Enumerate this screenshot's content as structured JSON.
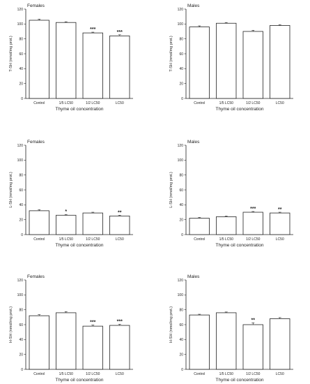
{
  "figure": {
    "background": "#ffffff",
    "bar_fill": "#ffffff",
    "bar_stroke": "#222222"
  },
  "chart_data": [
    {
      "type": "bar",
      "title": "Females",
      "xlabel": "Thyme oil concentration",
      "ylabel": "T-SH (nmol/mg prot.)",
      "ylim": [
        0,
        120
      ],
      "yticks": [
        0,
        20,
        40,
        60,
        80,
        100,
        120
      ],
      "categories": [
        "Control",
        "1/5 LC50",
        "1/2 LC50",
        "LC50"
      ],
      "values": [
        105,
        102,
        88,
        84
      ],
      "errors": [
        1.5,
        1.0,
        1.0,
        1.5
      ],
      "significance": [
        "",
        "",
        "***",
        "***"
      ]
    },
    {
      "type": "bar",
      "title": "Males",
      "xlabel": "Thyme oil concentration",
      "ylabel": "T-SH (nmol/mg prot.)",
      "ylim": [
        0,
        120
      ],
      "yticks": [
        0,
        20,
        40,
        60,
        80,
        100,
        120
      ],
      "categories": [
        "Control",
        "1/5 LC50",
        "1/2 LC50",
        "LC50"
      ],
      "values": [
        96,
        101,
        90,
        98
      ],
      "errors": [
        1.5,
        1.0,
        1.5,
        1.0
      ],
      "significance": [
        "",
        "",
        "",
        ""
      ]
    },
    {
      "type": "bar",
      "title": "Females",
      "xlabel": "Thyme oil concentration",
      "ylabel": "L-SH (nmol/mg prot.)",
      "ylim": [
        0,
        120
      ],
      "yticks": [
        0,
        20,
        40,
        60,
        80,
        100,
        120
      ],
      "categories": [
        "Control",
        "1/5 LC50",
        "1/2 LC50",
        "LC50"
      ],
      "values": [
        32,
        26,
        29,
        25
      ],
      "errors": [
        1.5,
        1.0,
        1.0,
        1.0
      ],
      "significance": [
        "",
        "*",
        "",
        "**"
      ]
    },
    {
      "type": "bar",
      "title": "Males",
      "xlabel": "Thyme oil concentration",
      "ylabel": "L-SH (nmol/mg prot.)",
      "ylim": [
        0,
        120
      ],
      "yticks": [
        0,
        20,
        40,
        60,
        80,
        100,
        120
      ],
      "categories": [
        "Control",
        "1/5 LC50",
        "1/2 LC50",
        "LC50"
      ],
      "values": [
        22,
        24,
        30,
        29
      ],
      "errors": [
        1.0,
        1.0,
        1.0,
        1.0
      ],
      "significance": [
        "",
        "",
        "***",
        "**"
      ]
    },
    {
      "type": "bar",
      "title": "Females",
      "xlabel": "Thyme oil concentration",
      "ylabel": "H-SH (nmol/mg prot.)",
      "ylim": [
        0,
        120
      ],
      "yticks": [
        0,
        20,
        40,
        60,
        80,
        100,
        120
      ],
      "categories": [
        "Control",
        "1/5 LC50",
        "1/2 LC50",
        "LC50"
      ],
      "values": [
        72,
        76,
        58,
        59
      ],
      "errors": [
        1.5,
        1.5,
        1.5,
        1.5
      ],
      "significance": [
        "",
        "",
        "***",
        "***"
      ]
    },
    {
      "type": "bar",
      "title": "Males",
      "xlabel": "Thyme oil concentration",
      "ylabel": "H-SH (nmol/mg prot.)",
      "ylim": [
        0,
        120
      ],
      "yticks": [
        0,
        20,
        40,
        60,
        80,
        100,
        120
      ],
      "categories": [
        "Control",
        "1/5 LC50",
        "1/2 LC50",
        "LC50"
      ],
      "values": [
        73,
        76,
        60,
        68
      ],
      "errors": [
        1.0,
        1.0,
        2.5,
        1.5
      ],
      "significance": [
        "",
        "",
        "**",
        ""
      ]
    }
  ]
}
